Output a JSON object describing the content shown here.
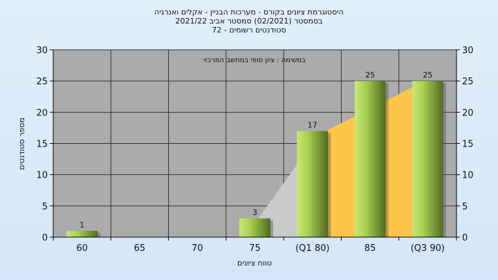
{
  "chart_data": {
    "type": "bar",
    "title_lines": [
      "היסטוגרמת ציונים בקורס - מערכות הבניין - אקלים ואנרגיה",
      "בסמסטר  (02/2021)  סמסטר אביב 2021/22",
      "סטודנטים רשומים - 72"
    ],
    "subtitle": "במשימה : ציון סופי במחשב המרכזי",
    "xlabel": "טווח ציונים",
    "ylabel": "מספר סטודנטים",
    "categories": [
      "60",
      "65",
      "70",
      "75",
      "(Q1 80)",
      "85",
      "(Q3 90)"
    ],
    "values": [
      1,
      0,
      0,
      3,
      17,
      25,
      25
    ],
    "data_labels": [
      "1",
      "",
      "",
      "3",
      "17",
      "25",
      "25"
    ],
    "ylim": [
      0,
      30
    ],
    "yticks": [
      0,
      5,
      10,
      15,
      20,
      25,
      30
    ],
    "grid": true,
    "colors": {
      "plot_bg": "#ababab",
      "bar_light": "#c8e878",
      "bar_dark": "#4f6b22",
      "area_gray": "#cacaca",
      "area_orange": "#ffc54a",
      "page_bg": "#dbeaf8"
    }
  }
}
